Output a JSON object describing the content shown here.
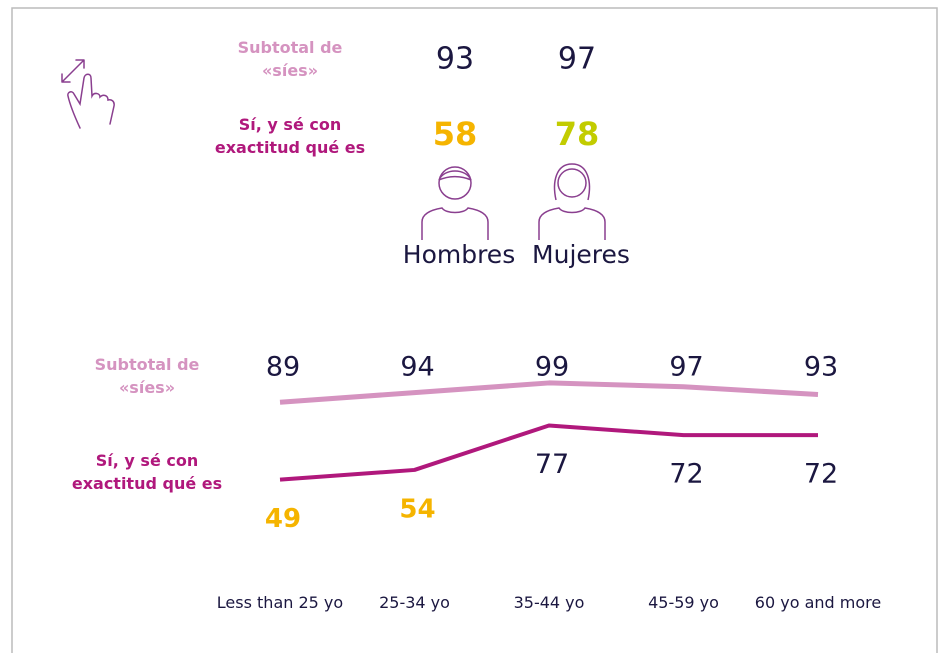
{
  "gender": {
    "categories": [
      "Hombres",
      "Mujeres"
    ],
    "subtotal": [
      93,
      97
    ],
    "exact": [
      58,
      78
    ],
    "exact_colors": [
      "#f5b400",
      "#c2cc00"
    ]
  },
  "chart_data": {
    "type": "line",
    "categories": [
      "Less than 25 yo",
      "25-34 yo",
      "35-44 yo",
      "45-59 yo",
      "60 yo and more"
    ],
    "ylim": [
      40,
      100
    ],
    "series": [
      {
        "name": "Subtotal de «síes»",
        "color": "#d593c0",
        "values": [
          89,
          94,
          99,
          97,
          93
        ],
        "label_position": "above",
        "value_label_colors": [
          "#1b1740",
          "#1b1740",
          "#1b1740",
          "#1b1740",
          "#1b1740"
        ]
      },
      {
        "name": "Sí, y sé con exactitud qué es",
        "color": "#b0187c",
        "values": [
          49,
          54,
          77,
          72,
          72
        ],
        "label_position": "below",
        "value_label_colors": [
          "#f5b400",
          "#f5b400",
          "#1b1740",
          "#1b1740",
          "#1b1740"
        ]
      }
    ]
  }
}
